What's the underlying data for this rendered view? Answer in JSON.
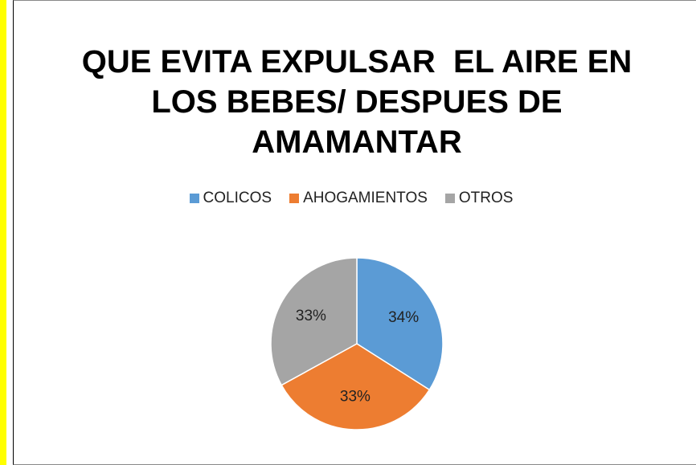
{
  "chart_data": {
    "type": "pie",
    "title": "QUE EVITA EXPULSAR  EL AIRE EN LOS BEBES/ DESPUES DE AMAMANTAR",
    "categories": [
      "COLICOS",
      "AHOGAMIENTOS",
      "OTROS"
    ],
    "values": [
      34,
      33,
      33
    ],
    "value_labels": [
      "34%",
      "33%",
      "33%"
    ],
    "colors": [
      "#5b9bd5",
      "#ed7d31",
      "#a5a5a5"
    ],
    "legend": "top"
  }
}
